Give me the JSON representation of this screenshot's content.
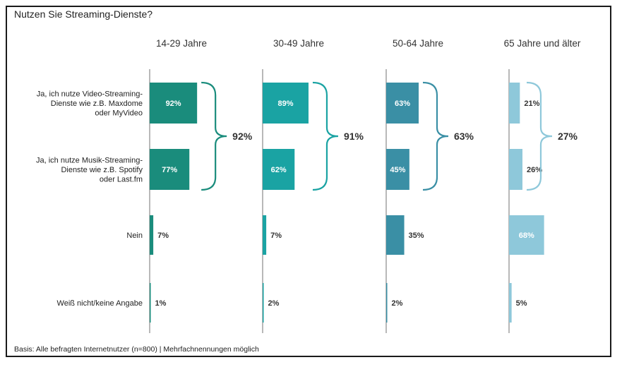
{
  "chart_data": {
    "type": "bar",
    "title": "Nutzen Sie Streaming-Dienste?",
    "footnote": "Basis: Alle befragten Internetnutzer (n=800) | Mehrfachnennungen möglich",
    "categories": [
      [
        "Ja, ich nutze Video-Streaming-",
        "Dienste wie z.B. Maxdome",
        "oder MyVideo"
      ],
      [
        "Ja, ich nutze Musik-Streaming-",
        "Dienste wie z.B. Spotify",
        "oder Last.fm"
      ],
      [
        "Nein"
      ],
      [
        "Weiß nicht/keine Angabe"
      ]
    ],
    "groups": [
      {
        "name": "14-29 Jahre",
        "values": [
          92,
          77,
          7,
          1
        ],
        "labels": [
          "92%",
          "77%",
          "7%",
          "1%"
        ],
        "total_label": "92%",
        "color": "#1a8c7c"
      },
      {
        "name": "30-49 Jahre",
        "values": [
          89,
          62,
          7,
          2
        ],
        "labels": [
          "89%",
          "62%",
          "7%",
          "2%"
        ],
        "total_label": "91%",
        "color": "#1aa3a3"
      },
      {
        "name": "50-64 Jahre",
        "values": [
          63,
          45,
          35,
          2
        ],
        "labels": [
          "63%",
          "45%",
          "35%",
          "2%"
        ],
        "total_label": "63%",
        "color": "#3a8fa5"
      },
      {
        "name": "65 Jahre und älter",
        "values": [
          21,
          26,
          68,
          5
        ],
        "labels": [
          "21%",
          "26%",
          "68%",
          "5%"
        ],
        "total_label": "27%",
        "color": "#8ec8da"
      }
    ],
    "bracket_colors": [
      "#1a8c7c",
      "#1aa3a3",
      "#3a8fa5",
      "#8ec8da"
    ]
  }
}
